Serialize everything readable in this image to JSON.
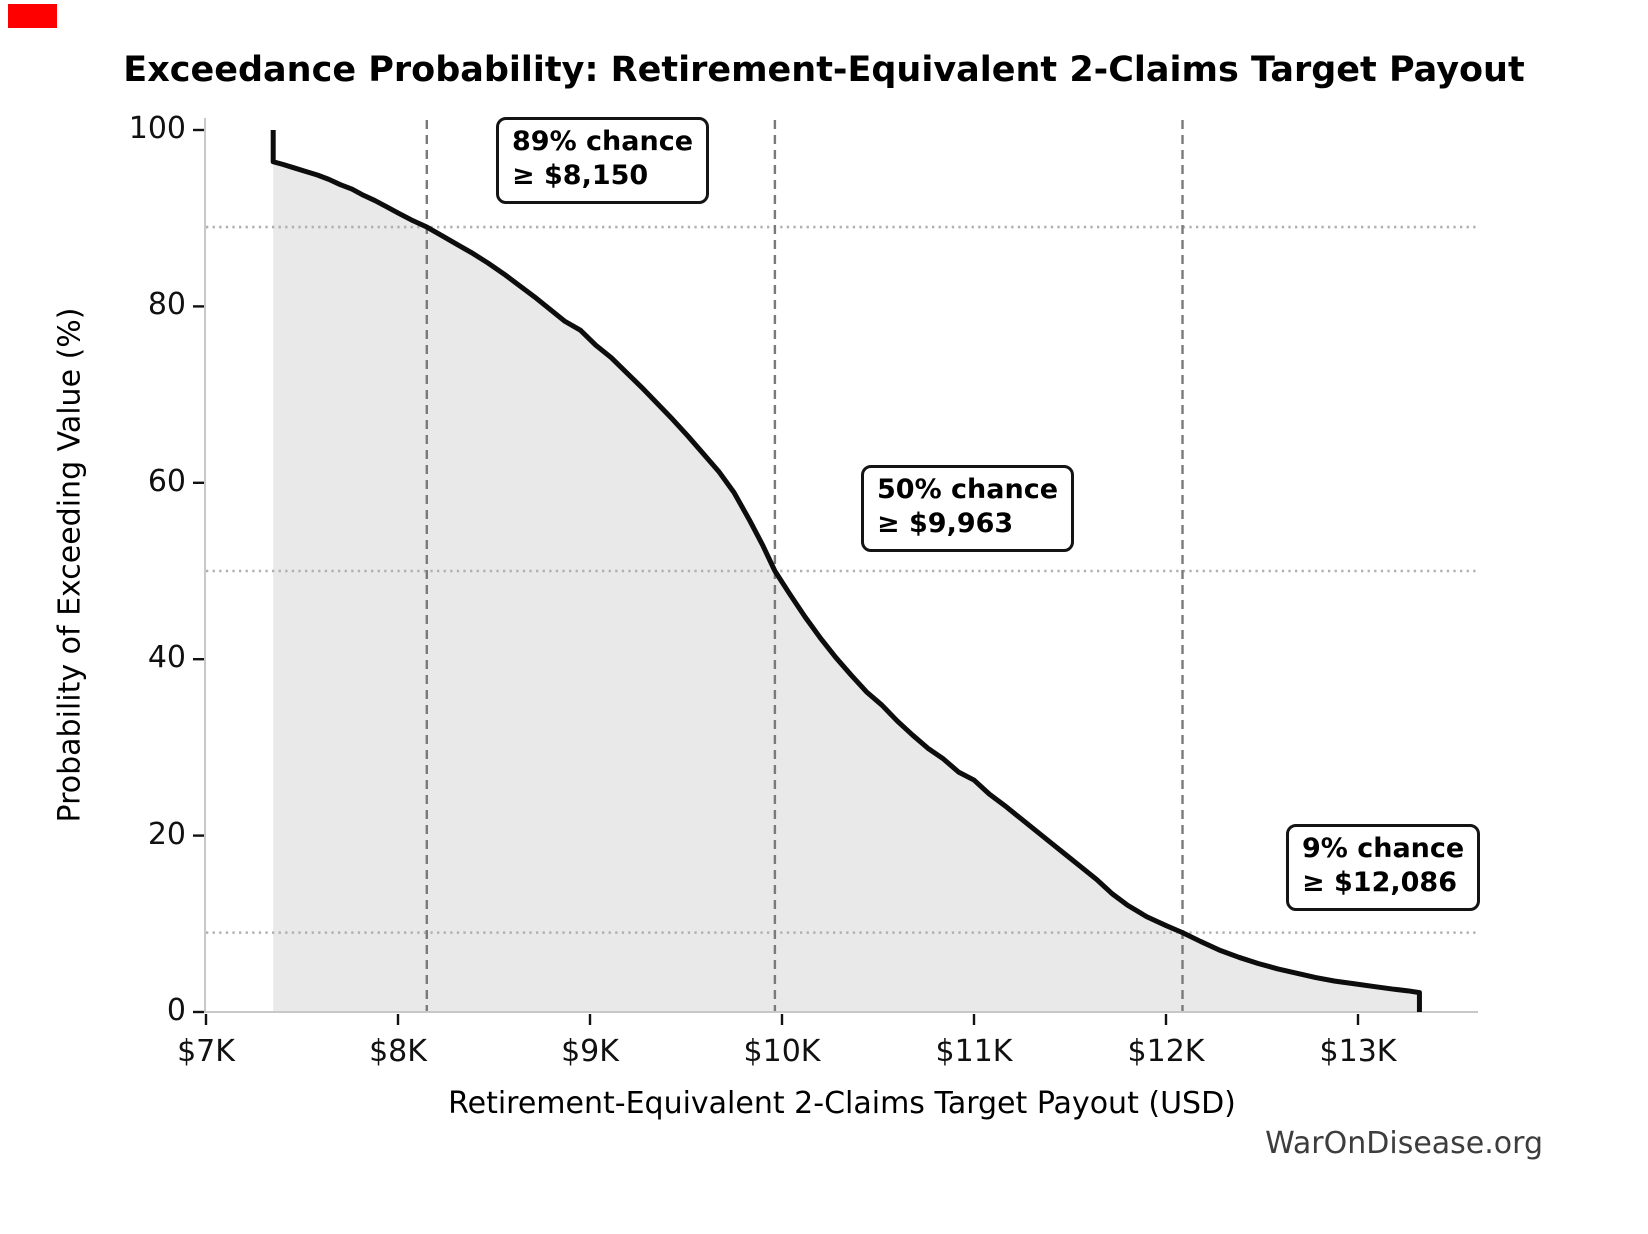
{
  "title": "Exceedance Probability: Retirement-Equivalent 2-Claims Target Payout",
  "watermark": "WarOnDisease.org",
  "colors": {
    "curve": "#0d0d0d",
    "fill": "#e9e9e9",
    "spine": "#c8c8c8",
    "dashed_line": "#7a7a7a",
    "dotted_line": "#b0b0b0",
    "tick": "#111111",
    "annotation_border": "#141414",
    "watermark_text": "#3d3d3d",
    "marker_red": "#ff0000"
  },
  "chart_data": {
    "type": "line",
    "title": "Exceedance Probability: Retirement-Equivalent 2-Claims Target Payout",
    "xlabel": "Retirement-Equivalent 2-Claims Target Payout (USD)",
    "ylabel": "Probability of Exceeding Value (%)",
    "xlim": [
      7000,
      13625
    ],
    "ylim": [
      0,
      100
    ],
    "grid": "dotted horizontal reference lines at 89/50/9 %, dashed vertical reference lines at $8150/$9963/$12086",
    "legend": "none",
    "x_ticks": {
      "values": [
        7000,
        8000,
        9000,
        10000,
        11000,
        12000,
        13000
      ],
      "labels": [
        "$7K",
        "$8K",
        "$9K",
        "$10K",
        "$11K",
        "$12K",
        "$13K"
      ]
    },
    "y_ticks": {
      "values": [
        0,
        20,
        40,
        60,
        80,
        100
      ],
      "labels": [
        "0",
        "20",
        "40",
        "60",
        "80",
        "100"
      ]
    },
    "annotations": [
      {
        "line1": "89% chance",
        "line2": "≥ $8,150",
        "value": 8150,
        "percent": 89
      },
      {
        "line1": "50% chance",
        "line2": "≥ $9,963",
        "value": 9963,
        "percent": 50
      },
      {
        "line1": "9% chance",
        "line2": "≥ $12,086",
        "value": 12086,
        "percent": 9
      }
    ],
    "series": [
      {
        "name": "exceedance-probability",
        "points": [
          [
            7350,
            100
          ],
          [
            7350,
            96.4
          ],
          [
            7400,
            96.1
          ],
          [
            7460,
            95.7
          ],
          [
            7520,
            95.3
          ],
          [
            7580,
            94.9
          ],
          [
            7640,
            94.4
          ],
          [
            7700,
            93.8
          ],
          [
            7760,
            93.3
          ],
          [
            7820,
            92.6
          ],
          [
            7880,
            92.0
          ],
          [
            7940,
            91.3
          ],
          [
            8000,
            90.6
          ],
          [
            8070,
            89.8
          ],
          [
            8150,
            89.0
          ],
          [
            8230,
            88.0
          ],
          [
            8310,
            87.0
          ],
          [
            8390,
            86.0
          ],
          [
            8470,
            84.9
          ],
          [
            8550,
            83.7
          ],
          [
            8630,
            82.4
          ],
          [
            8710,
            81.1
          ],
          [
            8790,
            79.7
          ],
          [
            8870,
            78.3
          ],
          [
            8950,
            77.3
          ],
          [
            9030,
            75.6
          ],
          [
            9110,
            74.2
          ],
          [
            9190,
            72.5
          ],
          [
            9270,
            70.8
          ],
          [
            9350,
            69.0
          ],
          [
            9430,
            67.2
          ],
          [
            9510,
            65.3
          ],
          [
            9590,
            63.3
          ],
          [
            9670,
            61.3
          ],
          [
            9750,
            58.9
          ],
          [
            9830,
            55.8
          ],
          [
            9900,
            52.9
          ],
          [
            9963,
            50.0
          ],
          [
            10040,
            47.4
          ],
          [
            10120,
            44.8
          ],
          [
            10200,
            42.4
          ],
          [
            10280,
            40.2
          ],
          [
            10360,
            38.2
          ],
          [
            10440,
            36.3
          ],
          [
            10520,
            34.8
          ],
          [
            10600,
            33.0
          ],
          [
            10680,
            31.4
          ],
          [
            10760,
            29.9
          ],
          [
            10840,
            28.7
          ],
          [
            10920,
            27.2
          ],
          [
            11000,
            26.3
          ],
          [
            11080,
            24.7
          ],
          [
            11160,
            23.4
          ],
          [
            11240,
            22.0
          ],
          [
            11320,
            20.6
          ],
          [
            11400,
            19.2
          ],
          [
            11480,
            17.8
          ],
          [
            11560,
            16.4
          ],
          [
            11640,
            15.0
          ],
          [
            11720,
            13.4
          ],
          [
            11800,
            12.1
          ],
          [
            11900,
            10.8
          ],
          [
            12000,
            9.8
          ],
          [
            12086,
            9.0
          ],
          [
            12180,
            8.0
          ],
          [
            12280,
            7.0
          ],
          [
            12380,
            6.2
          ],
          [
            12480,
            5.5
          ],
          [
            12580,
            4.9
          ],
          [
            12680,
            4.4
          ],
          [
            12780,
            3.9
          ],
          [
            12880,
            3.5
          ],
          [
            12980,
            3.2
          ],
          [
            13080,
            2.9
          ],
          [
            13180,
            2.6
          ],
          [
            13260,
            2.4
          ],
          [
            13320,
            2.2
          ],
          [
            13320,
            0
          ]
        ]
      }
    ]
  }
}
